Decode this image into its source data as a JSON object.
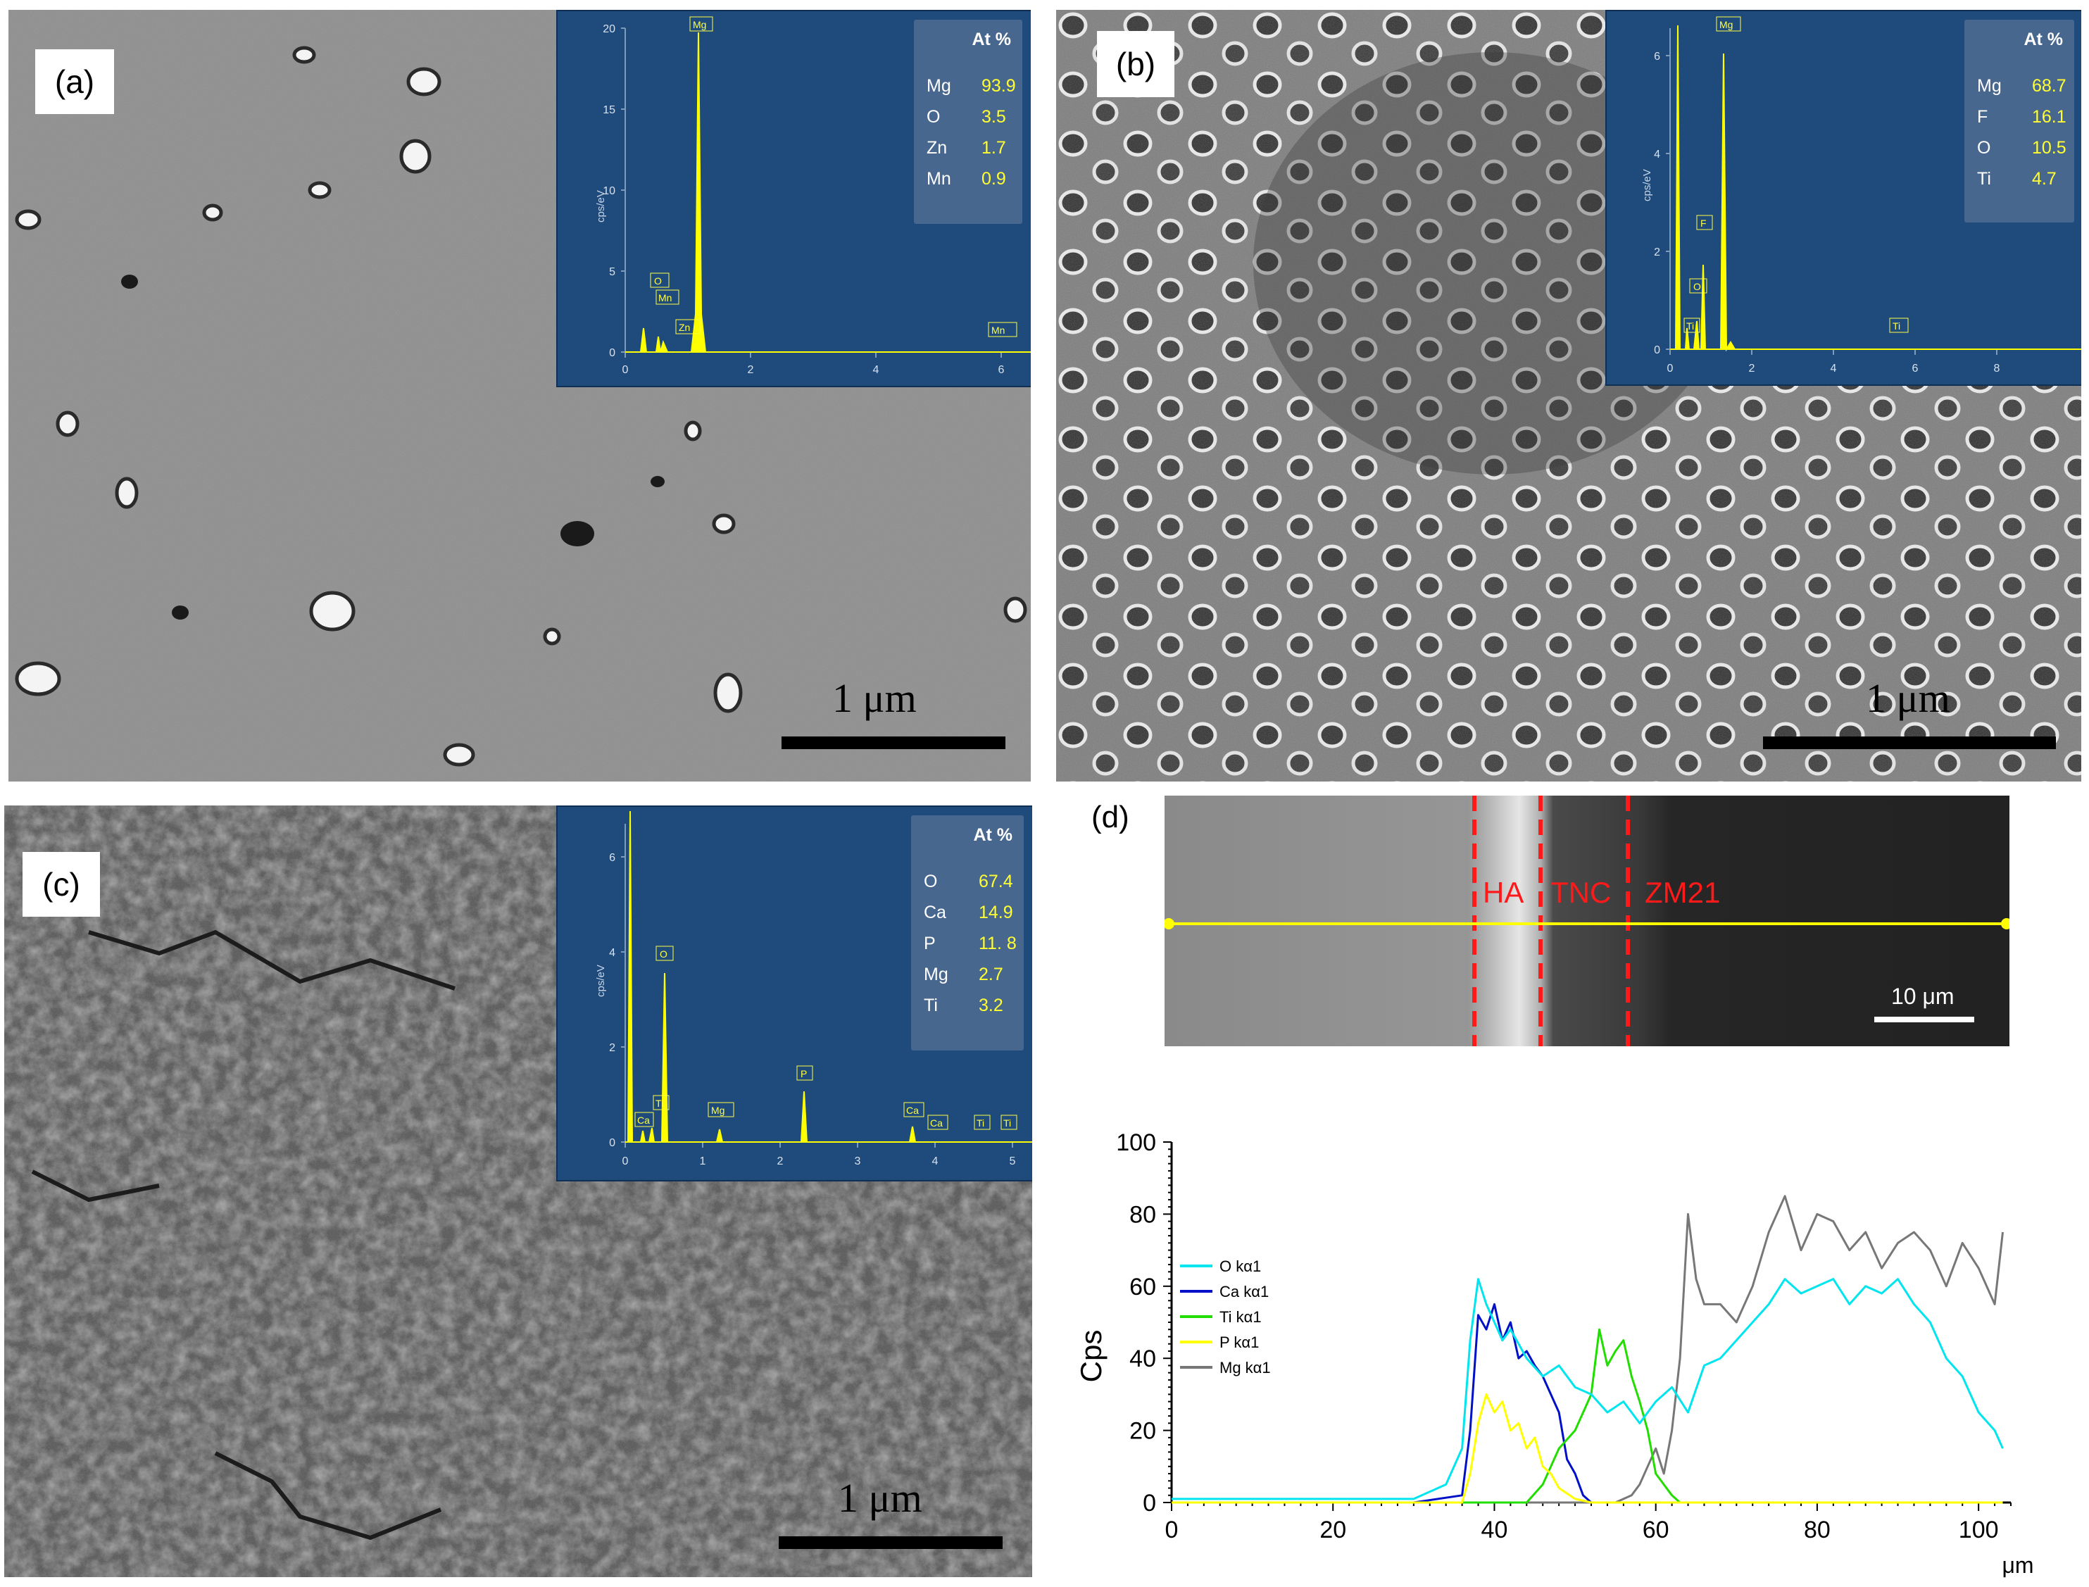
{
  "panels": {
    "a": {
      "label": "(a)",
      "scale_label": "1 μm",
      "inset": {
        "ylabel": "cps/eV",
        "yticks": [
          "0",
          "5",
          "10",
          "15",
          "20"
        ],
        "xticks": [
          "0",
          "2",
          "4",
          "6"
        ],
        "peak_labels": [
          "Mg",
          "O",
          "Mn",
          "Zn",
          "Mn"
        ],
        "table": {
          "header": "At %",
          "rows": [
            {
              "el": "Mg",
              "val": "93.9"
            },
            {
              "el": "O",
              "val": "3.5"
            },
            {
              "el": "Zn",
              "val": "1.7"
            },
            {
              "el": "Mn",
              "val": "0.9"
            }
          ]
        }
      }
    },
    "b": {
      "label": "(b)",
      "scale_label": "1 μm",
      "inset": {
        "ylabel": "cps/eV",
        "yticks": [
          "0",
          "2",
          "4",
          "6"
        ],
        "xticks": [
          "0",
          "2",
          "4",
          "6",
          "8"
        ],
        "peak_labels": [
          "Mg",
          "F",
          "O",
          "Ti",
          "Ti"
        ],
        "table": {
          "header": "At %",
          "rows": [
            {
              "el": "Mg",
              "val": "68.7"
            },
            {
              "el": "F",
              "val": "16.1"
            },
            {
              "el": "O",
              "val": "10.5"
            },
            {
              "el": "Ti",
              "val": "4.7"
            }
          ]
        }
      }
    },
    "c": {
      "label": "(c)",
      "scale_label": "1 μm",
      "inset": {
        "ylabel": "cps/eV",
        "yticks": [
          "0",
          "2",
          "4",
          "6"
        ],
        "xticks": [
          "0",
          "1",
          "2",
          "3",
          "4",
          "5"
        ],
        "peak_labels": [
          "O",
          "Ti",
          "Ca",
          "Mg",
          "P",
          "Ca",
          "Ca",
          "Ti",
          "Ti"
        ],
        "table": {
          "header": "At %",
          "rows": [
            {
              "el": "O",
              "val": "67.4"
            },
            {
              "el": "Ca",
              "val": "14.9"
            },
            {
              "el": "P",
              "val": "11. 8"
            },
            {
              "el": "Mg",
              "val": "2.7"
            },
            {
              "el": "Ti",
              "val": "3.2"
            }
          ]
        }
      }
    },
    "d": {
      "label": "(d)",
      "regions": [
        "HA",
        "TNC",
        "ZM21"
      ],
      "scale_label": "10 μm"
    }
  },
  "chart_data": {
    "type": "line",
    "title": "",
    "xlabel": "μm",
    "ylabel": "Cps",
    "xlim": [
      0,
      104
    ],
    "ylim": [
      0,
      100
    ],
    "xticks": [
      "0",
      "20",
      "40",
      "60",
      "80",
      "100"
    ],
    "yticks": [
      "0",
      "20",
      "40",
      "60",
      "80",
      "100"
    ],
    "legend_position": "left",
    "grid": false,
    "series": [
      {
        "name": "O kα1",
        "color": "#00e5ee",
        "x": [
          0,
          10,
          20,
          30,
          34,
          36,
          37,
          38,
          39,
          40,
          41,
          42,
          44,
          46,
          48,
          50,
          52,
          54,
          56,
          58,
          60,
          62,
          64,
          66,
          68,
          70,
          72,
          74,
          76,
          78,
          80,
          82,
          84,
          86,
          88,
          90,
          92,
          94,
          96,
          98,
          100,
          102,
          103
        ],
        "y": [
          1,
          1,
          1,
          1,
          5,
          15,
          45,
          62,
          55,
          50,
          45,
          48,
          40,
          35,
          38,
          32,
          30,
          25,
          28,
          22,
          28,
          32,
          25,
          38,
          40,
          45,
          50,
          55,
          62,
          58,
          60,
          62,
          55,
          60,
          58,
          62,
          55,
          50,
          40,
          35,
          25,
          20,
          15
        ]
      },
      {
        "name": "Ca kα1",
        "color": "#0010c8",
        "x": [
          0,
          30,
          36,
          37,
          38,
          39,
          40,
          41,
          42,
          43,
          44,
          45,
          46,
          47,
          48,
          49,
          50,
          51,
          52,
          60,
          103
        ],
        "y": [
          0,
          0,
          2,
          20,
          52,
          48,
          55,
          45,
          50,
          40,
          42,
          38,
          35,
          30,
          25,
          12,
          8,
          2,
          0,
          0,
          0
        ]
      },
      {
        "name": "Ti kα1",
        "color": "#22dd00",
        "x": [
          0,
          44,
          46,
          48,
          50,
          52,
          53,
          54,
          55,
          56,
          57,
          58,
          59,
          60,
          62,
          63,
          70,
          103
        ],
        "y": [
          0,
          0,
          5,
          15,
          20,
          30,
          48,
          38,
          42,
          45,
          35,
          28,
          20,
          8,
          2,
          0,
          0,
          0
        ]
      },
      {
        "name": "P kα1",
        "color": "#ffff00",
        "x": [
          0,
          36,
          37,
          38,
          39,
          40,
          41,
          42,
          43,
          44,
          45,
          46,
          47,
          48,
          50,
          52,
          103
        ],
        "y": [
          0,
          0,
          8,
          22,
          30,
          25,
          28,
          20,
          22,
          15,
          18,
          10,
          8,
          4,
          1,
          0,
          0
        ]
      },
      {
        "name": "Mg kα1",
        "color": "#777777",
        "x": [
          0,
          55,
          57,
          58,
          59,
          60,
          61,
          62,
          63,
          64,
          65,
          66,
          68,
          70,
          72,
          74,
          76,
          78,
          80,
          82,
          84,
          86,
          88,
          90,
          92,
          94,
          96,
          98,
          100,
          102,
          103
        ],
        "y": [
          0,
          0,
          2,
          5,
          10,
          15,
          8,
          20,
          40,
          80,
          62,
          55,
          55,
          50,
          60,
          75,
          85,
          70,
          80,
          78,
          70,
          75,
          65,
          72,
          75,
          70,
          60,
          72,
          65,
          55,
          75
        ]
      }
    ]
  }
}
